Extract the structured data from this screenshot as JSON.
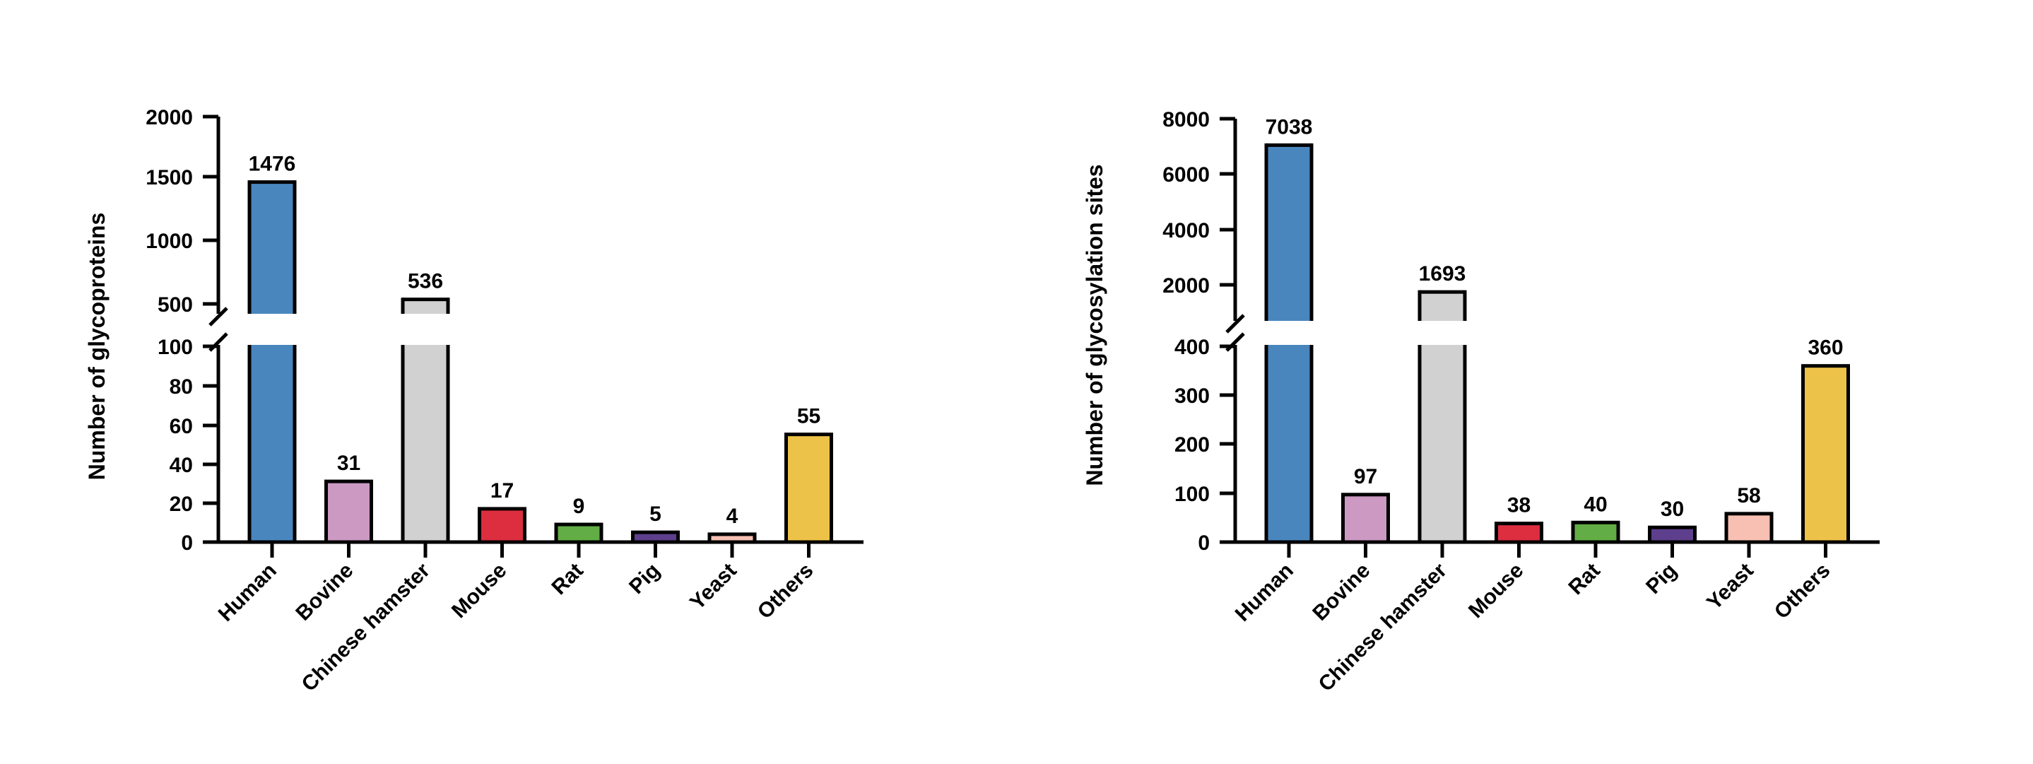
{
  "chart_data": [
    {
      "type": "bar",
      "ylabel": "Number of glycoproteins",
      "broken_axis": true,
      "y_lower_range": [
        0,
        100
      ],
      "y_upper_range": [
        500,
        2000
      ],
      "y_lower_ticks": [
        "0",
        "20",
        "40",
        "60",
        "80",
        "100"
      ],
      "y_upper_ticks": [
        "500",
        "1000",
        "1500",
        "2000"
      ],
      "categories": [
        "Human",
        "Bovine",
        "Chinese hamster",
        "Mouse",
        "Rat",
        "Pig",
        "Yeast",
        "Others"
      ],
      "values": [
        1476,
        31,
        536,
        17,
        9,
        5,
        4,
        55
      ],
      "value_labels": [
        "1476",
        "31",
        "536",
        "17",
        "9",
        "5",
        "4",
        "55"
      ],
      "colors": [
        "#4a86be",
        "#cc99c2",
        "#d0d1d0",
        "#dc2e3f",
        "#62ad45",
        "#5d3f8d",
        "#f7c0b2",
        "#edc248"
      ],
      "grid": false,
      "legend": "none"
    },
    {
      "type": "bar",
      "ylabel": "Number of glycosylation sites",
      "broken_axis": true,
      "y_lower_range": [
        0,
        400
      ],
      "y_upper_range": [
        1000,
        8000
      ],
      "y_lower_ticks": [
        "0",
        "100",
        "200",
        "300",
        "400"
      ],
      "y_upper_ticks": [
        "2000",
        "4000",
        "6000",
        "8000"
      ],
      "categories": [
        "Human",
        "Bovine",
        "Chinese hamster",
        "Mouse",
        "Rat",
        "Pig",
        "Yeast",
        "Others"
      ],
      "values": [
        7038,
        97,
        1693,
        38,
        40,
        30,
        58,
        360
      ],
      "value_labels": [
        "7038",
        "97",
        "1693",
        "38",
        "40",
        "30",
        "58",
        "360"
      ],
      "colors": [
        "#4a86be",
        "#cc99c2",
        "#d0d1d0",
        "#dc2e3f",
        "#62ad45",
        "#5d3f8d",
        "#f7c0b2",
        "#edc248"
      ],
      "grid": false,
      "legend": "none"
    }
  ]
}
